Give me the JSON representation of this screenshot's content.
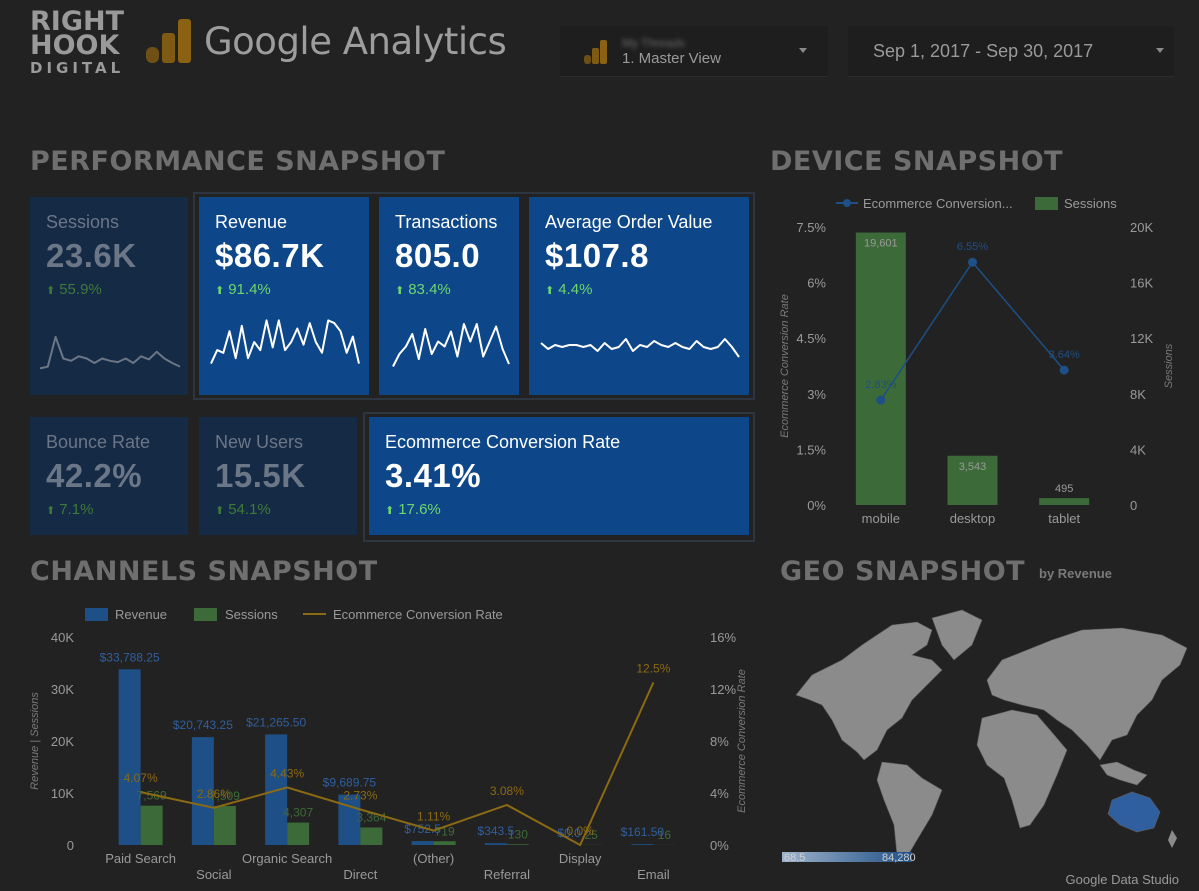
{
  "brand": {
    "logo_lines": [
      "RIGHT",
      "HOOK",
      "DIGITAL"
    ],
    "product_title": "Google Analytics"
  },
  "header": {
    "view_selector": {
      "account": "My Threads",
      "view": "1. Master View"
    },
    "date_range": "Sep 1, 2017 - Sep 30, 2017"
  },
  "sections": {
    "performance": "PERFORMANCE SNAPSHOT",
    "device": "DEVICE SNAPSHOT",
    "channels": "CHANNELS SNAPSHOT",
    "geo": "GEO SNAPSHOT",
    "geo_sub": "by Revenue"
  },
  "scorecards": [
    {
      "label": "Sessions",
      "value": "23.6K",
      "delta": "55.9%",
      "spark": [
        0.08,
        0.12,
        0.78,
        0.3,
        0.25,
        0.35,
        0.3,
        0.2,
        0.3,
        0.25,
        0.22,
        0.3,
        0.2,
        0.35,
        0.28,
        0.45,
        0.3,
        0.2,
        0.12
      ]
    },
    {
      "label": "Revenue",
      "value": "$86.7K",
      "delta": "91.4%",
      "spark": [
        0.1,
        0.35,
        0.3,
        0.7,
        0.2,
        0.8,
        0.2,
        0.5,
        0.35,
        0.9,
        0.4,
        0.9,
        0.35,
        0.5,
        0.75,
        0.45,
        0.85,
        0.5,
        0.3,
        0.9,
        0.85,
        0.7,
        0.3,
        0.6,
        0.1
      ]
    },
    {
      "label": "Transactions",
      "value": "805.0",
      "delta": "83.4%",
      "spark": [
        0.05,
        0.3,
        0.45,
        0.7,
        0.2,
        0.8,
        0.3,
        0.55,
        0.45,
        0.75,
        0.25,
        0.9,
        0.55,
        0.9,
        0.25,
        0.55,
        0.85,
        0.4,
        0.1
      ]
    },
    {
      "label": "Average Order Value",
      "value": "$107.8",
      "delta": "4.4%",
      "spark": [
        0.55,
        0.4,
        0.5,
        0.45,
        0.5,
        0.5,
        0.45,
        0.5,
        0.35,
        0.55,
        0.4,
        0.45,
        0.65,
        0.35,
        0.5,
        0.45,
        0.6,
        0.5,
        0.45,
        0.55,
        0.45,
        0.4,
        0.6,
        0.45,
        0.4,
        0.45,
        0.65,
        0.45,
        0.2
      ]
    },
    {
      "label": "Bounce Rate",
      "value": "42.2%",
      "delta": "7.1%"
    },
    {
      "label": "New Users",
      "value": "15.5K",
      "delta": "54.1%"
    },
    {
      "label": "Ecommerce Conversion Rate",
      "value": "3.41%",
      "delta": "17.6%"
    }
  ],
  "device_chart": {
    "legend": [
      "Ecommerce Conversion...",
      "Sessions"
    ],
    "y_left_ticks": [
      "7.5%",
      "6%",
      "4.5%",
      "3%",
      "1.5%",
      "0%"
    ],
    "y_right_ticks": [
      "20K",
      "16K",
      "12K",
      "8K",
      "4K",
      "0"
    ],
    "y_left_label": "Ecommerce Conversion Rate",
    "y_right_label": "Sessions",
    "colors": {
      "sessions": "#3c6b39",
      "conversion": "#1e4f86"
    }
  },
  "channels_chart": {
    "legend": [
      "Revenue",
      "Sessions",
      "Ecommerce Conversion Rate"
    ],
    "y_left_ticks": [
      "40K",
      "30K",
      "20K",
      "10K",
      "0"
    ],
    "y_right_ticks": [
      "16%",
      "12%",
      "8%",
      "4%",
      "0%"
    ],
    "y_left_label": "Revenue | Sessions",
    "y_right_label": "Ecommerce Conversion Rate",
    "colors": {
      "revenue": "#1e4f86",
      "sessions": "#3c6b39",
      "conversion": "#8a6a13"
    }
  },
  "geo_map": {
    "legend_min": "68.5",
    "legend_max": "84,280"
  },
  "footer": {
    "credit": "Google Data Studio"
  },
  "chart_data": [
    {
      "type": "bar",
      "title": "DEVICE SNAPSHOT",
      "categories": [
        "mobile",
        "desktop",
        "tablet"
      ],
      "series": [
        {
          "name": "Sessions",
          "axis": "right",
          "kind": "bar",
          "values": [
            19601,
            3543,
            495
          ],
          "labels": [
            "19,601",
            "3,543",
            "495"
          ]
        },
        {
          "name": "Ecommerce Conversion Rate",
          "axis": "left",
          "kind": "line",
          "values": [
            2.83,
            6.55,
            3.64
          ],
          "labels": [
            "2.83%",
            "6.55%",
            "3.64%"
          ]
        }
      ],
      "ylim_left": [
        0,
        7.5
      ],
      "ylim_right": [
        0,
        20000
      ],
      "legend": "top"
    },
    {
      "type": "bar",
      "title": "CHANNELS SNAPSHOT",
      "categories": [
        "Paid Search",
        "Social",
        "Organic Search",
        "Direct",
        "(Other)",
        "Referral",
        "Display",
        "Email"
      ],
      "series": [
        {
          "name": "Revenue",
          "axis": "left",
          "kind": "bar",
          "values": [
            33788.25,
            20743.25,
            21265.5,
            9689.75,
            752.5,
            343.5,
            0,
            161.5
          ],
          "labels": [
            "$33,788.25",
            "$20,743.25",
            "$21,265.50",
            "$9,689.75",
            "$752.5",
            "$343.5",
            "$0.0",
            "$161.50"
          ]
        },
        {
          "name": "Sessions",
          "axis": "left",
          "kind": "bar",
          "values": [
            7569,
            7509,
            4307,
            3364,
            719,
            130,
            25,
            16
          ],
          "labels": [
            "7,569",
            "7,509",
            "4,307",
            "3,364",
            "719",
            "130",
            "25",
            "16"
          ]
        },
        {
          "name": "Ecommerce Conversion Rate",
          "axis": "right",
          "kind": "line",
          "values": [
            4.07,
            2.86,
            4.43,
            2.73,
            1.11,
            3.08,
            0,
            12.5
          ],
          "labels": [
            "4.07%",
            "2.86%",
            "4.43%",
            "2.73%",
            "1.11%",
            "3.08%",
            "0.0%",
            "12.5%"
          ]
        }
      ],
      "ylim_left": [
        0,
        40000
      ],
      "ylim_right": [
        0,
        16
      ],
      "legend": "top"
    }
  ]
}
